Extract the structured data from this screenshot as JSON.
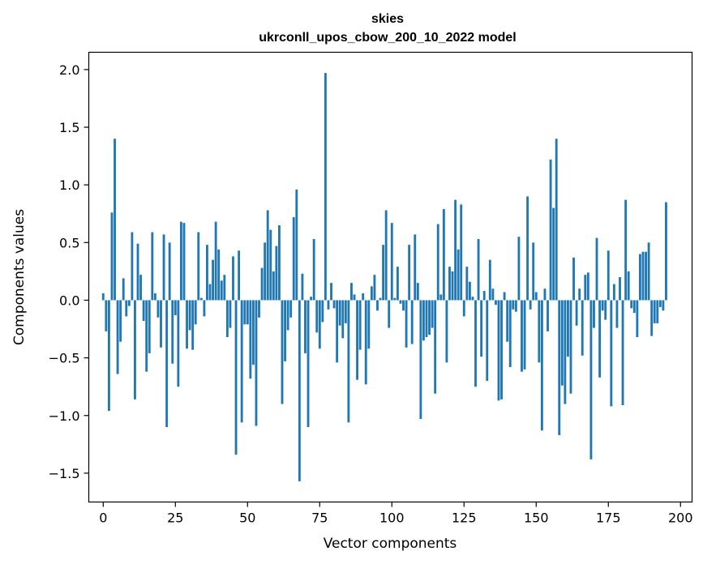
{
  "chart_data": {
    "type": "bar",
    "title": "skies",
    "subtitle": "ukrconll_upos_cbow_200_10_2022 model",
    "xlabel": "Vector components",
    "ylabel": "Components values",
    "xlim": [
      -5,
      204
    ],
    "ylim": [
      -1.75,
      2.15
    ],
    "xticks": [
      0,
      25,
      50,
      75,
      100,
      125,
      150,
      175,
      200
    ],
    "yticks": [
      -1.5,
      -1.0,
      -0.5,
      0.0,
      0.5,
      1.0,
      1.5,
      2.0
    ],
    "ytick_labels": [
      "−1.5",
      "−1.0",
      "−0.5",
      "0.0",
      "0.5",
      "1.0",
      "1.5",
      "2.0"
    ],
    "grid": false,
    "bar_color": "#1f77b4",
    "values": [
      0.06,
      -0.27,
      -0.96,
      0.76,
      1.4,
      -0.64,
      -0.36,
      0.19,
      -0.14,
      -0.05,
      0.59,
      -0.86,
      0.49,
      0.22,
      -0.18,
      -0.62,
      -0.46,
      0.59,
      0.06,
      -0.15,
      -0.41,
      0.57,
      -1.1,
      0.5,
      -0.55,
      -0.13,
      -0.75,
      0.68,
      0.67,
      -0.42,
      -0.26,
      -0.43,
      -0.21,
      0.59,
      0.02,
      -0.14,
      0.48,
      0.14,
      0.35,
      0.68,
      0.44,
      0.17,
      0.22,
      -0.32,
      -0.24,
      0.38,
      -1.34,
      0.43,
      -1.06,
      -0.21,
      -0.21,
      -0.68,
      -0.56,
      -1.09,
      -0.15,
      0.28,
      0.5,
      0.78,
      0.61,
      0.25,
      0.47,
      0.65,
      -0.9,
      -0.53,
      -0.26,
      -0.15,
      0.72,
      0.96,
      -1.57,
      0.23,
      -0.46,
      -1.1,
      0.03,
      0.53,
      -0.28,
      -0.42,
      -0.19,
      1.97,
      -0.08,
      0.15,
      -0.07,
      -0.54,
      -0.22,
      -0.33,
      -0.2,
      -1.06,
      0.15,
      0.05,
      -0.69,
      -0.43,
      0.06,
      -0.73,
      -0.42,
      0.12,
      0.22,
      -0.09,
      0.02,
      0.48,
      0.78,
      -0.24,
      0.67,
      0.02,
      0.29,
      -0.03,
      -0.09,
      -0.41,
      0.48,
      -0.38,
      0.57,
      0.15,
      -1.03,
      -0.35,
      -0.32,
      -0.3,
      -0.24,
      -0.81,
      0.66,
      0.05,
      0.79,
      -0.54,
      0.29,
      0.25,
      0.87,
      0.44,
      0.83,
      -0.14,
      0.29,
      0.16,
      0.03,
      -0.75,
      0.53,
      -0.49,
      0.08,
      -0.7,
      0.35,
      0.1,
      -0.04,
      -0.87,
      -0.86,
      0.07,
      -0.36,
      -0.58,
      -0.08,
      -0.1,
      0.55,
      -0.62,
      -0.6,
      0.9,
      -0.08,
      0.5,
      0.07,
      -0.54,
      -1.13,
      0.1,
      -0.27,
      1.22,
      0.8,
      1.4,
      -1.17,
      -0.74,
      -0.9,
      -0.49,
      -0.81,
      0.37,
      -0.22,
      0.1,
      -0.48,
      0.22,
      0.24,
      -1.38,
      -0.24,
      0.54,
      -0.67,
      -0.09,
      -0.17,
      0.43,
      -0.92,
      0.14,
      -0.24,
      0.2,
      -0.91,
      0.87,
      0.25,
      -0.07,
      -0.11,
      -0.32,
      0.4,
      0.42,
      0.42,
      0.5,
      -0.31,
      -0.2,
      -0.2,
      -0.06,
      -0.09,
      0.85
    ]
  }
}
